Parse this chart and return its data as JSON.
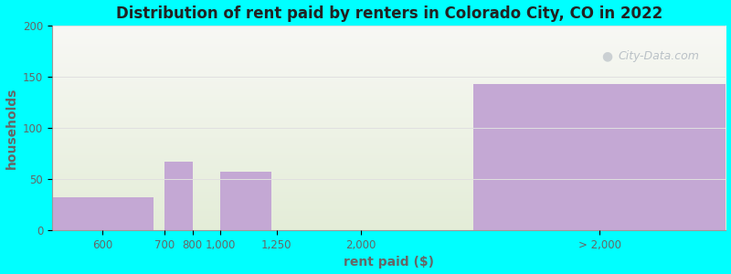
{
  "title": "Distribution of rent paid by renters in Colorado City, CO in 2022",
  "xlabel": "rent paid ($)",
  "ylabel": "households",
  "background_color": "#00FFFF",
  "plot_bg_top": "#f8f8f5",
  "plot_bg_bottom": "#e4edd8",
  "bar_color": "#c4a8d4",
  "categories": [
    "600",
    "700",
    "800",
    "1,000",
    "1,250",
    "2,000",
    "> 2,000"
  ],
  "values": [
    32,
    67,
    0,
    57,
    0,
    0,
    143
  ],
  "bar_lefts": [
    0.0,
    2.0,
    2.5,
    3.0,
    4.0,
    5.5,
    7.5
  ],
  "bar_rights": [
    1.8,
    2.5,
    3.0,
    3.9,
    5.3,
    7.3,
    12.0
  ],
  "tick_positions": [
    0.9,
    2.0,
    2.5,
    3.0,
    4.0,
    5.5,
    9.75
  ],
  "yticks": [
    0,
    50,
    100,
    150,
    200
  ],
  "ylim": [
    0,
    200
  ],
  "xlim": [
    0.0,
    12.0
  ],
  "tick_label_color": "#666666",
  "axis_label_color": "#666666",
  "title_color": "#222222",
  "grid_color": "#e0e0e0",
  "watermark": "City-Data.com"
}
